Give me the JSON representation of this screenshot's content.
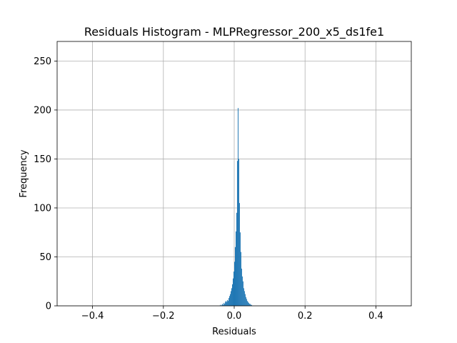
{
  "chart_data": {
    "type": "bar",
    "title": "Residuals Histogram - MLPRegressor_200_x5_ds1fe1",
    "xlabel": "Residuals",
    "ylabel": "Frequency",
    "xlim": [
      -0.5,
      0.5
    ],
    "ylim": [
      0,
      270
    ],
    "xticks": [
      -0.4,
      -0.2,
      0.0,
      0.2,
      0.4
    ],
    "xtick_labels": [
      "−0.4",
      "−0.2",
      "0.0",
      "0.2",
      "0.4"
    ],
    "yticks": [
      0,
      50,
      100,
      150,
      200,
      250
    ],
    "ytick_labels": [
      "0",
      "50",
      "100",
      "150",
      "200",
      "250"
    ],
    "grid": true,
    "bar_color": "#1f77b4",
    "bin_edges_start": -0.04,
    "bin_width": 0.002,
    "values": [
      1,
      0,
      1,
      2,
      1,
      3,
      2,
      4,
      5,
      4,
      6,
      5,
      8,
      10,
      12,
      15,
      18,
      22,
      28,
      35,
      45,
      60,
      76,
      95,
      148,
      202,
      150,
      105,
      75,
      55,
      38,
      30,
      25,
      18,
      15,
      12,
      9,
      7,
      5,
      4,
      3,
      2,
      2,
      1,
      1
    ]
  }
}
